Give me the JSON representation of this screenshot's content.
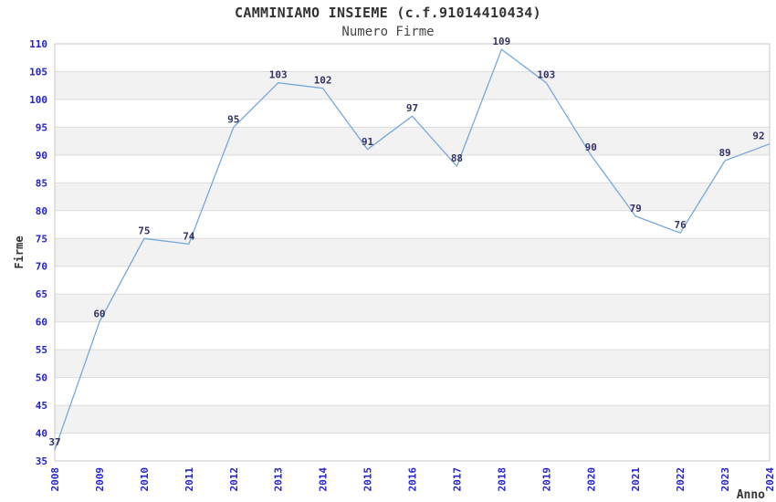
{
  "chart_data": {
    "type": "line",
    "title": "CAMMINIAMO INSIEME (c.f.91014410434)",
    "subtitle": "Numero Firme",
    "xlabel": "Anno",
    "ylabel": "Firme",
    "categories": [
      "2008",
      "2009",
      "2010",
      "2011",
      "2012",
      "2013",
      "2014",
      "2015",
      "2016",
      "2017",
      "2018",
      "2019",
      "2020",
      "2021",
      "2022",
      "2023",
      "2024"
    ],
    "series": [
      {
        "name": "Numero Firme",
        "values": [
          37,
          60,
          75,
          74,
          95,
          103,
          102,
          91,
          97,
          88,
          109,
          103,
          90,
          79,
          76,
          89,
          92
        ]
      }
    ],
    "ylim": [
      35,
      110
    ],
    "ytick_step": 5,
    "grid": "horizontal-only",
    "bands": "alternating-gray-every-5",
    "legend_position": "none",
    "data_labels": "shown-above-points",
    "x_tick_rotation": -90,
    "colors": {
      "line": "#77a8dc",
      "tick_label": "#2323cc",
      "data_label": "#333366",
      "band": "#f2f2f2",
      "gridline": "#dcdcdc",
      "plot_border": "#c8c8c8",
      "title": "#333333",
      "subtitle": "#444444",
      "axis_title": "#333333",
      "background": "#ffffff"
    }
  }
}
